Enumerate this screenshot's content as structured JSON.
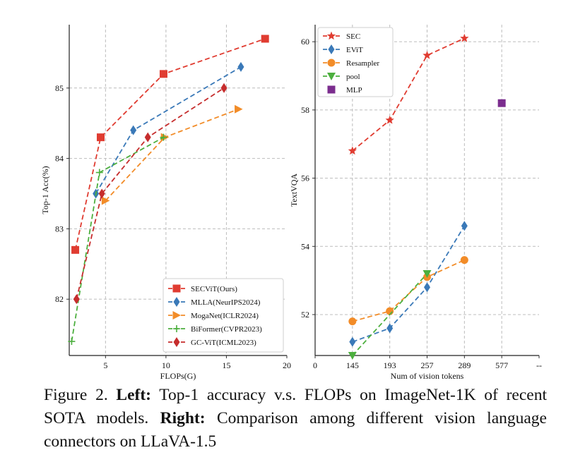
{
  "chart_data": [
    {
      "type": "line",
      "xlabel": "FLOPs(G)",
      "ylabel": "Top-1 Acc(%)",
      "xlim": [
        2,
        20
      ],
      "ylim": [
        81.2,
        85.9
      ],
      "xticks": [
        5,
        10,
        15,
        20
      ],
      "xtick_labels": [
        "5",
        "10",
        "15",
        "20"
      ],
      "yticks": [
        82,
        83,
        84,
        85
      ],
      "ytick_labels": [
        "82",
        "83",
        "84",
        "85"
      ],
      "grid": true,
      "legend_position": "lower-right",
      "series": [
        {
          "name": "SECViT(Ours)",
          "color": "#e03c31",
          "marker": "square",
          "x": [
            2.5,
            4.6,
            9.8,
            18.2
          ],
          "y": [
            82.7,
            84.3,
            85.2,
            85.7
          ]
        },
        {
          "name": "MLLA(NeurIPS2024)",
          "color": "#3a79b8",
          "marker": "diamond",
          "x": [
            4.2,
            7.3,
            16.2
          ],
          "y": [
            83.5,
            84.4,
            85.3
          ]
        },
        {
          "name": "MogaNet(ICLR2024)",
          "color": "#f28c28",
          "marker": "triangle-right",
          "x": [
            5.0,
            9.9,
            16.0
          ],
          "y": [
            83.4,
            84.3,
            84.7
          ]
        },
        {
          "name": "BiFormer(CVPR2023)",
          "color": "#4caf3e",
          "marker": "plus",
          "x": [
            2.2,
            4.5,
            9.8
          ],
          "y": [
            81.4,
            83.8,
            84.3
          ]
        },
        {
          "name": "GC-ViT(ICML2023)",
          "color": "#c62d2d",
          "marker": "diamond",
          "x": [
            2.6,
            4.7,
            8.5,
            14.8
          ],
          "y": [
            82.0,
            83.5,
            84.3,
            85.0
          ]
        }
      ]
    },
    {
      "type": "line",
      "xlabel": "Num of vision tokens",
      "ylabel": "TextVQA",
      "categories": [
        "0",
        "145",
        "193",
        "257",
        "289",
        "577",
        "--"
      ],
      "xtick_labels": [
        "0",
        "145",
        "193",
        "257",
        "289",
        "577",
        "--"
      ],
      "ylim": [
        50.8,
        60.5
      ],
      "yticks": [
        52,
        54,
        56,
        58,
        60
      ],
      "ytick_labels": [
        "52",
        "54",
        "56",
        "58",
        "60"
      ],
      "grid": true,
      "legend_position": "upper-left",
      "series": [
        {
          "name": "SEC",
          "color": "#e03c31",
          "marker": "star",
          "x": [
            "145",
            "193",
            "257",
            "289"
          ],
          "y": [
            56.8,
            57.7,
            59.6,
            60.1
          ]
        },
        {
          "name": "EViT",
          "color": "#3a79b8",
          "marker": "diamond",
          "x": [
            "145",
            "193",
            "257",
            "289"
          ],
          "y": [
            51.2,
            51.6,
            52.8,
            54.6
          ]
        },
        {
          "name": "Resampler",
          "color": "#f28c28",
          "marker": "circle",
          "x": [
            "145",
            "193",
            "257",
            "289"
          ],
          "y": [
            51.8,
            52.1,
            53.1,
            53.6
          ]
        },
        {
          "name": "pool",
          "color": "#4caf3e",
          "marker": "triangle-down",
          "x": [
            "145",
            "257"
          ],
          "y": [
            50.8,
            53.2
          ]
        },
        {
          "name": "MLP",
          "color": "#7b2d8e",
          "marker": "square",
          "x": [
            "577"
          ],
          "y": [
            58.2
          ]
        }
      ]
    }
  ],
  "caption": {
    "prefix": "Figure 2. ",
    "left_label": "Left:",
    "left_text": " Top-1 accuracy v.s. FLOPs on ImageNet-1K of recent SOTA models. ",
    "right_label": "Right:",
    "right_text": " Comparison among different vision language connectors on LLaVA-1.5"
  }
}
